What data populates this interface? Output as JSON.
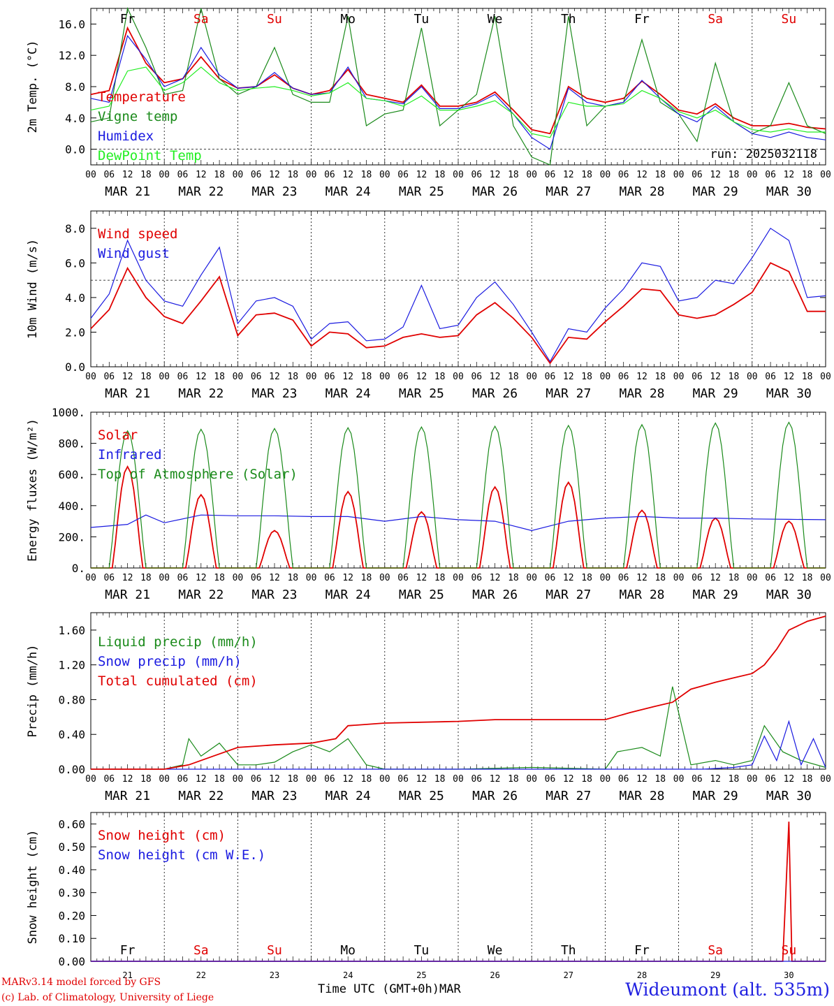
{
  "footer": {
    "credit_line1": "MARv3.14 model forced by GFS",
    "credit_line2": "(c) Lab. of Climatology, University of Liege",
    "axis_title": "Time UTC (GMT+0h)MAR",
    "station": "Wideumont (alt. 535m)"
  },
  "colors": {
    "red": "#e00000",
    "green": "#1a8a1a",
    "blue": "#1a1ae0",
    "lime": "#22ee22",
    "weekend": "#e00000"
  },
  "days": {
    "names": [
      "Fr",
      "Sa",
      "Su",
      "Mo",
      "Tu",
      "We",
      "Th",
      "Fr",
      "Sa",
      "Su"
    ],
    "weekend": [
      false,
      true,
      true,
      false,
      false,
      false,
      false,
      false,
      true,
      true
    ],
    "dates": [
      "MAR 21",
      "MAR 22",
      "MAR 23",
      "MAR 24",
      "MAR 25",
      "MAR 26",
      "MAR 27",
      "MAR 28",
      "MAR 29",
      "MAR 30"
    ],
    "day_numbers": [
      "21",
      "22",
      "23",
      "24",
      "25",
      "26",
      "27",
      "28",
      "29",
      "30"
    ],
    "hour_ticks": [
      "00",
      "06",
      "12",
      "18"
    ],
    "final_tick": "00"
  },
  "chart_data": [
    {
      "type": "line",
      "ylabel": "2m Temp. (°C)",
      "ylim": [
        -2.0,
        18.0
      ],
      "yticks": [
        "0.0",
        "4.0",
        "8.0",
        "12.0",
        "16.0"
      ],
      "ytick_values": [
        0,
        4,
        8,
        12,
        16
      ],
      "dashed_y": 0,
      "annotation": "run: 2025032118",
      "x_unit": "hours since MAR 21 00 UTC",
      "series": [
        {
          "name": "Temperature",
          "color": "red",
          "x": [
            0,
            6,
            12,
            18,
            24,
            30,
            36,
            42,
            48,
            54,
            60,
            66,
            72,
            78,
            84,
            90,
            96,
            102,
            108,
            114,
            120,
            126,
            132,
            138,
            144,
            150,
            156,
            162,
            168,
            174,
            180,
            186,
            192,
            198,
            204,
            210,
            216,
            222,
            228,
            234,
            240
          ],
          "values": [
            7.0,
            7.5,
            15.5,
            11.0,
            8.5,
            9.0,
            11.8,
            9.0,
            7.8,
            8.0,
            9.5,
            7.8,
            7.0,
            7.5,
            10.2,
            7.0,
            6.5,
            6.0,
            8.2,
            5.5,
            5.5,
            6.0,
            7.3,
            5.0,
            2.5,
            2.0,
            8.0,
            6.5,
            6.0,
            6.5,
            8.7,
            7.0,
            5.0,
            4.5,
            5.8,
            4.0,
            3.0,
            3.0,
            3.3,
            2.8,
            2.6
          ]
        },
        {
          "name": "Vigne temp",
          "color": "green",
          "x": [
            0,
            6,
            12,
            18,
            24,
            30,
            36,
            42,
            48,
            54,
            60,
            66,
            72,
            78,
            84,
            90,
            96,
            102,
            108,
            114,
            120,
            126,
            132,
            138,
            144,
            150,
            156,
            162,
            168,
            174,
            180,
            186,
            192,
            198,
            204,
            210,
            216,
            222,
            228,
            234,
            240
          ],
          "values": [
            3.5,
            4.0,
            18.0,
            13.0,
            7.0,
            7.5,
            18.0,
            9.0,
            7.0,
            8.0,
            13.0,
            7.0,
            6.0,
            6.0,
            17.0,
            3.0,
            4.5,
            5.0,
            15.5,
            3.0,
            5.0,
            7.0,
            17.0,
            3.0,
            -1.0,
            -2.0,
            17.0,
            3.0,
            5.5,
            6.0,
            14.0,
            6.0,
            4.5,
            1.0,
            11.0,
            3.5,
            2.0,
            3.0,
            8.5,
            3.0,
            2.0
          ]
        },
        {
          "name": "Humidex",
          "color": "blue",
          "x": [
            0,
            6,
            12,
            18,
            24,
            30,
            36,
            42,
            48,
            54,
            60,
            66,
            72,
            78,
            84,
            90,
            96,
            102,
            108,
            114,
            120,
            126,
            132,
            138,
            144,
            150,
            156,
            162,
            168,
            174,
            180,
            186,
            192,
            198,
            204,
            210,
            216,
            222,
            228,
            234,
            240
          ],
          "values": [
            6.5,
            6.0,
            14.5,
            11.5,
            8.0,
            9.0,
            13.0,
            9.5,
            7.8,
            8.0,
            9.8,
            7.8,
            7.0,
            7.2,
            10.5,
            6.5,
            6.2,
            5.8,
            8.0,
            5.2,
            5.2,
            5.8,
            7.0,
            4.5,
            1.5,
            0.0,
            7.8,
            6.0,
            5.5,
            6.0,
            8.8,
            6.5,
            4.5,
            3.5,
            5.5,
            3.5,
            2.0,
            1.5,
            2.2,
            1.5,
            1.2
          ]
        },
        {
          "name": "DewPoint Temp",
          "color": "lime",
          "x": [
            0,
            6,
            12,
            18,
            24,
            30,
            36,
            42,
            48,
            54,
            60,
            66,
            72,
            78,
            84,
            90,
            96,
            102,
            108,
            114,
            120,
            126,
            132,
            138,
            144,
            150,
            156,
            162,
            168,
            174,
            180,
            186,
            192,
            198,
            204,
            210,
            216,
            222,
            228,
            234,
            240
          ],
          "values": [
            5.0,
            5.5,
            10.0,
            10.5,
            7.5,
            8.5,
            10.5,
            8.5,
            7.5,
            7.8,
            8.0,
            7.5,
            6.8,
            7.2,
            8.5,
            6.5,
            6.2,
            5.5,
            6.8,
            5.0,
            5.0,
            5.5,
            6.2,
            4.5,
            2.0,
            1.5,
            6.0,
            5.5,
            5.5,
            5.8,
            7.5,
            6.5,
            4.8,
            4.0,
            5.0,
            3.5,
            2.5,
            2.2,
            2.6,
            2.2,
            2.2
          ]
        }
      ]
    },
    {
      "type": "line",
      "ylabel": "10m Wind (m/s)",
      "ylim": [
        0,
        9
      ],
      "yticks": [
        "0.0",
        "2.0",
        "4.0",
        "6.0",
        "8.0"
      ],
      "ytick_values": [
        0,
        2,
        4,
        6,
        8
      ],
      "dashed_y": 5,
      "x_unit": "hours since MAR 21 00 UTC",
      "series": [
        {
          "name": "Wind speed",
          "color": "red",
          "x": [
            0,
            6,
            12,
            18,
            24,
            30,
            36,
            42,
            48,
            54,
            60,
            66,
            72,
            78,
            84,
            90,
            96,
            102,
            108,
            114,
            120,
            126,
            132,
            138,
            144,
            150,
            156,
            162,
            168,
            174,
            180,
            186,
            192,
            198,
            204,
            210,
            216,
            222,
            228,
            234,
            240
          ],
          "values": [
            2.2,
            3.3,
            5.7,
            4.0,
            2.9,
            2.5,
            3.8,
            5.2,
            1.8,
            3.0,
            3.1,
            2.7,
            1.2,
            2.0,
            1.9,
            1.1,
            1.2,
            1.7,
            1.9,
            1.7,
            1.8,
            3.0,
            3.7,
            2.8,
            1.7,
            0.2,
            1.7,
            1.6,
            2.6,
            3.5,
            4.5,
            4.4,
            3.0,
            2.8,
            3.0,
            3.6,
            4.3,
            6.0,
            5.5,
            3.2,
            3.2
          ]
        },
        {
          "name": "Wind gust",
          "color": "blue",
          "x": [
            0,
            6,
            12,
            18,
            24,
            30,
            36,
            42,
            48,
            54,
            60,
            66,
            72,
            78,
            84,
            90,
            96,
            102,
            108,
            114,
            120,
            126,
            132,
            138,
            144,
            150,
            156,
            162,
            168,
            174,
            180,
            186,
            192,
            198,
            204,
            210,
            216,
            222,
            228,
            234,
            240
          ],
          "values": [
            2.8,
            4.2,
            7.3,
            5.0,
            3.8,
            3.5,
            5.3,
            6.9,
            2.5,
            3.8,
            4.0,
            3.5,
            1.6,
            2.5,
            2.6,
            1.5,
            1.6,
            2.3,
            4.7,
            2.2,
            2.4,
            4.0,
            4.9,
            3.6,
            2.0,
            0.3,
            2.2,
            2.0,
            3.4,
            4.5,
            6.0,
            5.8,
            3.8,
            4.0,
            5.0,
            4.8,
            6.3,
            8.0,
            7.3,
            4.0,
            4.1
          ]
        }
      ]
    },
    {
      "type": "line",
      "ylabel": "Energy fluxes (W/m²)",
      "ylim": [
        0,
        1000
      ],
      "yticks": [
        "0.",
        "200.",
        "400.",
        "600.",
        "800.",
        "1000."
      ],
      "ytick_values": [
        0,
        200,
        400,
        600,
        800,
        1000
      ],
      "x_unit": "hours since MAR 21 00 UTC",
      "series": [
        {
          "name": "Solar",
          "color": "red",
          "day_peaks": [
            650,
            470,
            240,
            490,
            360,
            520,
            550,
            370,
            320,
            300
          ]
        },
        {
          "name": "Infrared",
          "color": "blue",
          "x": [
            0,
            12,
            18,
            24,
            36,
            48,
            60,
            72,
            84,
            96,
            108,
            120,
            132,
            144,
            156,
            168,
            180,
            192,
            204,
            216,
            228,
            240
          ],
          "values": [
            260,
            280,
            340,
            290,
            340,
            335,
            335,
            330,
            330,
            300,
            330,
            310,
            300,
            240,
            300,
            320,
            330,
            320,
            320,
            315,
            312,
            310
          ]
        },
        {
          "name": "Top of Atmosphere (Solar)",
          "color": "green",
          "day_peaks": [
            880,
            890,
            895,
            900,
            905,
            910,
            915,
            920,
            930,
            935
          ]
        }
      ]
    },
    {
      "type": "line",
      "ylabel": "Precip (mm/h)",
      "ylim": [
        0,
        1.8
      ],
      "yticks": [
        "0.00",
        "0.40",
        "0.80",
        "1.20",
        "1.60"
      ],
      "ytick_values": [
        0,
        0.4,
        0.8,
        1.2,
        1.6
      ],
      "x_unit": "hours since MAR 21 00 UTC",
      "series": [
        {
          "name": "Liquid precip (mm/h)",
          "color": "green",
          "x": [
            0,
            24,
            30,
            32,
            36,
            42,
            48,
            54,
            60,
            66,
            72,
            78,
            84,
            90,
            96,
            120,
            144,
            168,
            172,
            180,
            186,
            190,
            196,
            204,
            210,
            216,
            220,
            226,
            232,
            240
          ],
          "values": [
            0,
            0,
            0.05,
            0.35,
            0.15,
            0.3,
            0.05,
            0.05,
            0.08,
            0.2,
            0.28,
            0.2,
            0.35,
            0.05,
            0.0,
            0.0,
            0.02,
            0.0,
            0.2,
            0.25,
            0.15,
            0.95,
            0.05,
            0.1,
            0.05,
            0.1,
            0.5,
            0.2,
            0.1,
            0.02
          ]
        },
        {
          "name": "Snow precip (mm/h)",
          "color": "blue",
          "x": [
            0,
            200,
            210,
            216,
            220,
            224,
            228,
            232,
            236,
            240
          ],
          "values": [
            0,
            0,
            0.02,
            0.05,
            0.38,
            0.1,
            0.55,
            0.05,
            0.35,
            0.02
          ]
        },
        {
          "name": "Total cumulated (cm)",
          "color": "red",
          "x": [
            0,
            24,
            32,
            40,
            48,
            60,
            72,
            80,
            84,
            96,
            120,
            132,
            168,
            176,
            184,
            190,
            196,
            204,
            210,
            216,
            220,
            224,
            228,
            234,
            240
          ],
          "values": [
            0,
            0,
            0.05,
            0.15,
            0.25,
            0.28,
            0.3,
            0.35,
            0.5,
            0.53,
            0.55,
            0.57,
            0.57,
            0.65,
            0.72,
            0.77,
            0.92,
            1.0,
            1.05,
            1.1,
            1.2,
            1.38,
            1.6,
            1.7,
            1.76
          ]
        }
      ]
    },
    {
      "type": "line",
      "ylabel": "Snow height (cm)",
      "ylim": [
        0,
        0.65
      ],
      "yticks": [
        "0.00",
        "0.10",
        "0.20",
        "0.30",
        "0.40",
        "0.50",
        "0.60"
      ],
      "ytick_values": [
        0,
        0.1,
        0.2,
        0.3,
        0.4,
        0.5,
        0.6
      ],
      "x_unit": "hours since MAR 21 00 UTC",
      "series": [
        {
          "name": "Snow height (cm)",
          "color": "red",
          "x": [
            0,
            226,
            227,
            228,
            229,
            240
          ],
          "values": [
            0,
            0,
            0.3,
            0.61,
            0,
            0
          ]
        },
        {
          "name": "Snow height (cm W.E.)",
          "color": "blue",
          "x": [
            0,
            240
          ],
          "values": [
            0,
            0
          ]
        }
      ]
    }
  ]
}
